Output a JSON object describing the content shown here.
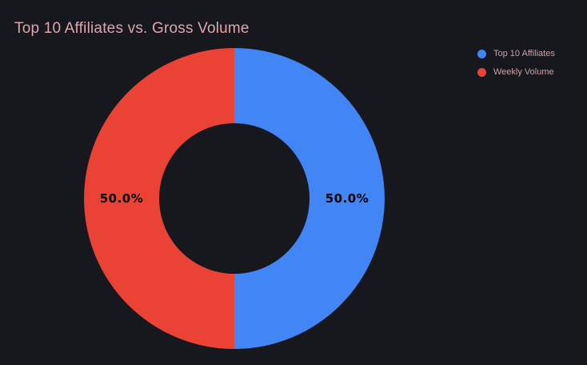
{
  "title": "Top 10 Affiliates vs. Gross Volume",
  "colors": {
    "background": "#16181d",
    "title_text": "#dfa6ad",
    "legend_text": "#c9a1a7",
    "slice_label_text": "#000000",
    "accent_blue": "#4285f4",
    "accent_red": "#ea4335"
  },
  "chart_data": {
    "type": "pie",
    "subtype": "donut",
    "title": "Top 10 Affiliates vs. Gross Volume",
    "labels": [
      "Top 10 Affiliates",
      "Weekly Volume"
    ],
    "values": [
      50.0,
      50.0
    ],
    "value_labels": [
      "50.0%",
      "50.0%"
    ],
    "colors": [
      "#4285f4",
      "#ea4335"
    ],
    "start_angle_deg": -90,
    "direction": "clockwise",
    "inner_radius_ratio": 0.5,
    "grid": false,
    "legend_position": "right-top"
  },
  "legend": {
    "items": [
      {
        "label": "Top 10 Affiliates",
        "color": "#4285f4"
      },
      {
        "label": "Weekly Volume",
        "color": "#ea4335"
      }
    ]
  }
}
